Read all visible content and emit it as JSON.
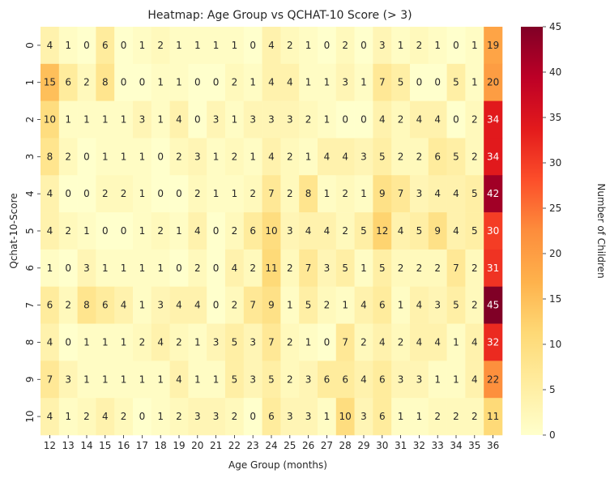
{
  "chart_data": {
    "type": "heatmap",
    "title": "Heatmap: Age Group vs QCHAT-10 Score (> 3)",
    "xlabel": "Age Group (months)",
    "ylabel": "Qchat-10-Score",
    "colorbar_label": "Number of Children",
    "colormap": "YlOrRd",
    "vmin": 0,
    "vmax": 45,
    "colorbar_ticks": [
      0,
      5,
      10,
      15,
      20,
      25,
      30,
      35,
      40,
      45
    ],
    "x": [
      12,
      13,
      14,
      15,
      16,
      17,
      18,
      19,
      20,
      21,
      22,
      23,
      24,
      25,
      26,
      27,
      28,
      29,
      30,
      31,
      32,
      33,
      34,
      35,
      36
    ],
    "y": [
      0,
      1,
      2,
      3,
      4,
      5,
      6,
      7,
      8,
      9,
      10
    ],
    "z": [
      [
        4,
        1,
        0,
        6,
        0,
        1,
        2,
        1,
        1,
        1,
        1,
        0,
        4,
        2,
        1,
        0,
        2,
        0,
        3,
        1,
        2,
        1,
        0,
        1,
        19
      ],
      [
        15,
        6,
        2,
        8,
        0,
        0,
        1,
        1,
        0,
        0,
        2,
        1,
        4,
        4,
        1,
        1,
        3,
        1,
        7,
        5,
        0,
        0,
        5,
        1,
        20
      ],
      [
        10,
        1,
        1,
        1,
        1,
        3,
        1,
        4,
        0,
        3,
        1,
        3,
        3,
        3,
        2,
        1,
        0,
        0,
        4,
        2,
        4,
        4,
        0,
        2,
        34
      ],
      [
        8,
        2,
        0,
        1,
        1,
        1,
        0,
        2,
        3,
        1,
        2,
        1,
        4,
        2,
        1,
        4,
        4,
        3,
        5,
        2,
        2,
        6,
        5,
        2,
        34
      ],
      [
        4,
        0,
        0,
        2,
        2,
        1,
        0,
        0,
        2,
        1,
        1,
        2,
        7,
        2,
        8,
        1,
        2,
        1,
        9,
        7,
        3,
        4,
        4,
        5,
        42
      ],
      [
        4,
        2,
        1,
        0,
        0,
        1,
        2,
        1,
        4,
        0,
        2,
        6,
        10,
        3,
        4,
        4,
        2,
        5,
        12,
        4,
        5,
        9,
        4,
        5,
        30
      ],
      [
        1,
        0,
        3,
        1,
        1,
        1,
        1,
        0,
        2,
        0,
        4,
        2,
        11,
        2,
        7,
        3,
        5,
        1,
        5,
        2,
        2,
        2,
        7,
        2,
        31
      ],
      [
        6,
        2,
        8,
        6,
        4,
        1,
        3,
        4,
        4,
        0,
        2,
        7,
        9,
        1,
        5,
        2,
        1,
        4,
        6,
        1,
        4,
        3,
        5,
        2,
        45
      ],
      [
        4,
        0,
        1,
        1,
        1,
        2,
        4,
        2,
        1,
        3,
        5,
        3,
        7,
        2,
        1,
        0,
        7,
        2,
        4,
        2,
        4,
        4,
        1,
        4,
        32
      ],
      [
        7,
        3,
        1,
        1,
        1,
        1,
        1,
        4,
        1,
        1,
        5,
        3,
        5,
        2,
        3,
        6,
        6,
        4,
        6,
        3,
        3,
        1,
        1,
        4,
        22
      ],
      [
        4,
        1,
        2,
        4,
        2,
        0,
        1,
        2,
        3,
        3,
        2,
        0,
        6,
        3,
        3,
        1,
        10,
        3,
        6,
        1,
        1,
        2,
        2,
        2,
        11
      ]
    ]
  }
}
